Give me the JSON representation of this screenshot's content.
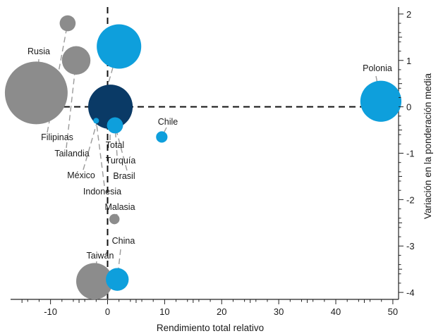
{
  "chart_data": {
    "type": "scatter",
    "xlabel": "Rendimiento total relativo",
    "ylabel": "Variación en la ponderación media",
    "xlim": [
      -17,
      51
    ],
    "ylim": [
      -4.15,
      2.15
    ],
    "xticks": [
      -10,
      0,
      10,
      20,
      30,
      40,
      50
    ],
    "yticks": [
      -4,
      -3,
      -2,
      -1,
      0,
      1,
      2
    ],
    "x_tick_labels": [
      "-10",
      "0",
      "10",
      "20",
      "30",
      "40",
      "50"
    ],
    "y_tick_labels": [
      "-4",
      "-3",
      "-2",
      "-1",
      "0",
      "1",
      "2"
    ],
    "reference_lines": {
      "x": 0,
      "y": 0,
      "style": "dashed"
    },
    "grid": false,
    "legend": "none",
    "colors": {
      "gray": "#8c8c8c",
      "light_blue": "#0e9fdc",
      "dark_blue": "#0a3a66"
    },
    "points": [
      {
        "label": "Rusia",
        "x": -12.5,
        "y": 0.3,
        "color": "gray",
        "size": 5.5
      },
      {
        "label": "Filipinas",
        "x": -7.0,
        "y": 1.8,
        "color": "gray",
        "size": 1.4
      },
      {
        "label": "Tailandia",
        "x": -5.5,
        "y": 1.0,
        "color": "gray",
        "size": 2.5
      },
      {
        "label": "México",
        "x": 2.0,
        "y": 1.3,
        "color": "light_blue",
        "size": 3.9
      },
      {
        "label": "Indonesia",
        "x": -2.0,
        "y": -0.3,
        "color": "light_blue",
        "size": 0.5
      },
      {
        "label": "Total",
        "x": 0.5,
        "y": 0.0,
        "color": "dark_blue",
        "size": 3.9
      },
      {
        "label": "Turquía",
        "x": 1.3,
        "y": -0.4,
        "color": "light_blue",
        "size": 1.4
      },
      {
        "label": "Brasil",
        "x": 1.3,
        "y": -0.4,
        "color": "light_blue",
        "size": 1.4
      },
      {
        "label": "Chile",
        "x": 9.5,
        "y": -0.65,
        "color": "light_blue",
        "size": 1.0
      },
      {
        "label": "Polonia",
        "x": 47.9,
        "y": 0.12,
        "color": "light_blue",
        "size": 3.6
      },
      {
        "label": "Malasia",
        "x": 1.2,
        "y": -2.42,
        "color": "gray",
        "size": 0.9
      },
      {
        "label": "China",
        "x": 1.7,
        "y": -3.72,
        "color": "light_blue",
        "size": 2.0
      },
      {
        "label": "Taiwán",
        "x": -2.3,
        "y": -3.76,
        "color": "gray",
        "size": 3.2
      }
    ]
  }
}
